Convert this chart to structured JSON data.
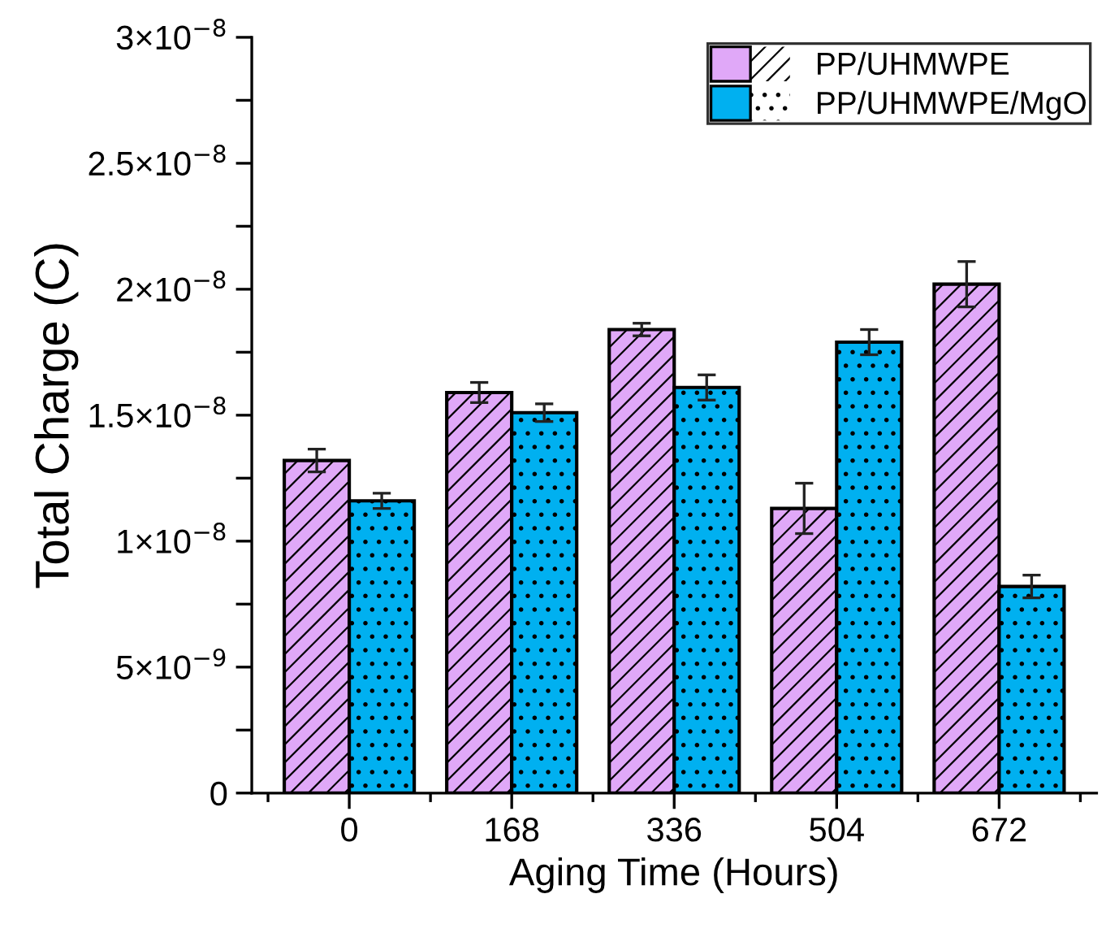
{
  "chart_data": {
    "type": "bar",
    "xlabel": "Aging Time (Hours)",
    "ylabel": "Total Charge (C)",
    "categories": [
      "0",
      "168",
      "336",
      "504",
      "672"
    ],
    "series": [
      {
        "name": "PP/UHMWPE",
        "color": "#e0a8f8",
        "values": [
          1.32e-08,
          1.59e-08,
          1.84e-08,
          1.13e-08,
          2.02e-08
        ],
        "errors": [
          4.5e-10,
          4e-10,
          2.5e-10,
          1e-09,
          9e-10
        ]
      },
      {
        "name": "PP/UHMWPE/MgO",
        "color": "#00b0f0",
        "values": [
          1.16e-08,
          1.51e-08,
          1.61e-08,
          1.79e-08,
          8.2e-09
        ],
        "errors": [
          3e-10,
          3.5e-10,
          5e-10,
          5e-10,
          4.5e-10
        ]
      }
    ],
    "ylim": [
      0,
      3e-08
    ],
    "yticks": [
      {
        "value": 0,
        "label": "0"
      },
      {
        "value": 2.5e-09,
        "label": null
      },
      {
        "value": 5e-09,
        "label": "5×10$^{−9}$"
      },
      {
        "value": 7.5e-09,
        "label": null
      },
      {
        "value": 1e-08,
        "label": "1×10$^{−8}$"
      },
      {
        "value": 1.25e-08,
        "label": null
      },
      {
        "value": 1.5e-08,
        "label": "1.5×10$^{−8}$"
      },
      {
        "value": 1.75e-08,
        "label": null
      },
      {
        "value": 2e-08,
        "label": "2×10$^{−8}$"
      },
      {
        "value": 2.25e-08,
        "label": null
      },
      {
        "value": 2.5e-08,
        "label": "2.5×10$^{−8}$"
      },
      {
        "value": 2.75e-08,
        "label": null
      },
      {
        "value": 3e-08,
        "label": "3×10$^{−8}$"
      }
    ],
    "grid": false,
    "legend": "top right"
  }
}
